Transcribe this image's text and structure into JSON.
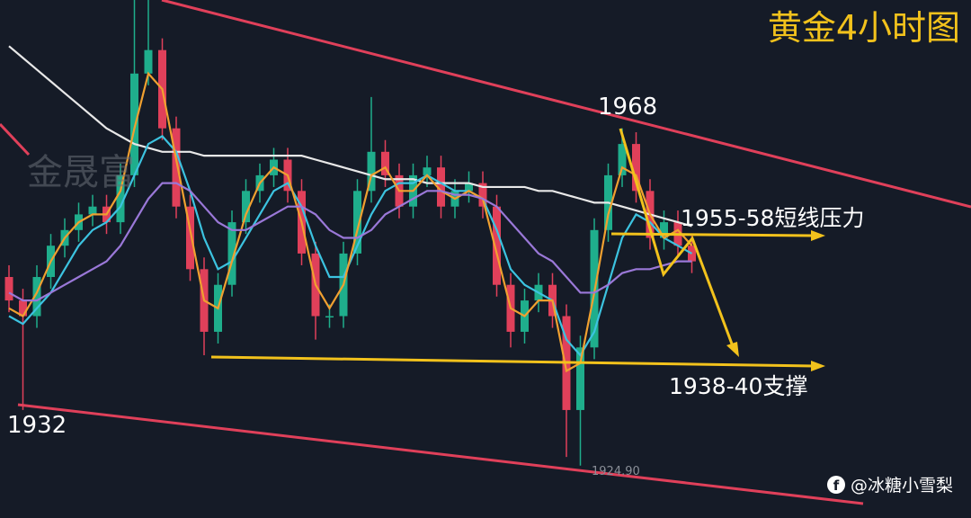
{
  "chart_data": {
    "type": "candlestick",
    "title": "黄金4小时图",
    "watermark": "金晟富",
    "annotations": [
      "1968",
      "1955-58短线压力",
      "1938-40支撑",
      "1932",
      "1924.90"
    ],
    "author": "@冰糖小雪梨",
    "ylim": [
      1918.2,
      1984.4
    ],
    "up_color": "#1fae8c",
    "down_color": "#e0405a",
    "open": [
      1949,
      1946,
      1944,
      1949,
      1953,
      1955,
      1957,
      1958,
      1956,
      1962,
      1975,
      1978,
      1968,
      1958,
      1950,
      1942,
      1948,
      1956,
      1960,
      1962,
      1964,
      1960,
      1952,
      1944,
      1944,
      1952,
      1960,
      1965,
      1962,
      1958,
      1962,
      1963,
      1958,
      1960,
      1961,
      1958,
      1948,
      1942,
      1946,
      1948,
      1944,
      1932,
      1940,
      1955,
      1962,
      1966,
      1960,
      1954,
      1956,
      1953
    ],
    "high": [
      1950.5,
      1947.5,
      1950.5,
      1954.5,
      1956.5,
      1958.5,
      1959.5,
      1959.5,
      1963.5,
      1986,
      1986,
      1979.5,
      1969.5,
      1959.5,
      1951.5,
      1949.5,
      1957.5,
      1961.5,
      1963.5,
      1965.5,
      1965.5,
      1961.5,
      1953.5,
      1945.5,
      1953.5,
      1961.5,
      1972,
      1966.5,
      1963.5,
      1963.5,
      1964.5,
      1964.5,
      1961.5,
      1962.5,
      1962.5,
      1959.5,
      1949.5,
      1947.5,
      1949.5,
      1949.5,
      1945.5,
      1941.5,
      1956.5,
      1963.5,
      1968,
      1967.5,
      1961.5,
      1957.5,
      1957.5,
      1954.5
    ],
    "low": [
      1944.5,
      1932,
      1942.5,
      1947.5,
      1951.5,
      1953.5,
      1955.5,
      1954.5,
      1954.5,
      1960.5,
      1973.5,
      1966.5,
      1956.5,
      1948.5,
      1939,
      1940.5,
      1946.5,
      1954.5,
      1958.5,
      1960.5,
      1958.5,
      1950.5,
      1941,
      1942.5,
      1942.5,
      1950.5,
      1958.5,
      1960.5,
      1956.5,
      1956.5,
      1960.5,
      1956.5,
      1956.5,
      1958.5,
      1956.5,
      1946.5,
      1940,
      1940.5,
      1944.5,
      1942.5,
      1926,
      1924.9,
      1938.5,
      1953.5,
      1960.5,
      1958.5,
      1952.5,
      1952.5,
      1951.5,
      1949.5
    ],
    "close": [
      1946,
      1944,
      1949,
      1953,
      1955,
      1957,
      1958,
      1956,
      1962,
      1975,
      1978,
      1968,
      1958,
      1950,
      1942,
      1948,
      1956,
      1960,
      1962,
      1964,
      1960,
      1952,
      1944,
      1944,
      1952,
      1960,
      1965,
      1962,
      1958,
      1962,
      1963,
      1958,
      1960,
      1961,
      1958,
      1948,
      1942,
      1946,
      1948,
      1944,
      1932,
      1940,
      1955,
      1962,
      1966,
      1960,
      1954,
      1956,
      1953,
      1951
    ],
    "series": [
      {
        "color": "#e8e8e8",
        "values": [
          1978.5,
          1977,
          1975.5,
          1974,
          1972.5,
          1971,
          1969.5,
          1968,
          1967,
          1966,
          1965.5,
          1965,
          1965,
          1965,
          1964.5,
          1964.5,
          1964.5,
          1964.5,
          1964.5,
          1964.5,
          1964.5,
          1964.5,
          1964,
          1963.5,
          1963,
          1962.5,
          1962,
          1961.5,
          1961.5,
          1961.5,
          1961,
          1961,
          1961,
          1961,
          1960.5,
          1960.5,
          1960.5,
          1960.5,
          1960,
          1960,
          1959.5,
          1959,
          1958.5,
          1958.5,
          1958,
          1957.5,
          1957,
          1956.5,
          1956,
          1955.5
        ]
      },
      {
        "color": "#3cc3e0",
        "values": [
          1944,
          1943,
          1945,
          1947,
          1950,
          1953,
          1955,
          1956,
          1958,
          1962,
          1966,
          1967,
          1965,
          1960,
          1954,
          1950,
          1951,
          1954,
          1957,
          1960,
          1961,
          1958,
          1953,
          1949,
          1949,
          1953,
          1957,
          1960,
          1961,
          1961,
          1962,
          1961,
          1960,
          1960,
          1959,
          1955,
          1950,
          1948,
          1947,
          1946,
          1941,
          1939,
          1942,
          1948,
          1954,
          1957,
          1956,
          1954,
          1953,
          1952
        ]
      },
      {
        "color": "#f0a030",
        "values": [
          1945,
          1944,
          1947,
          1951,
          1954,
          1956,
          1957,
          1957,
          1960,
          1968,
          1975,
          1973,
          1964,
          1955,
          1946,
          1945,
          1951,
          1957,
          1961,
          1963,
          1962,
          1956,
          1948,
          1945,
          1948,
          1955,
          1962,
          1963,
          1960,
          1960,
          1962,
          1960,
          1959,
          1960,
          1959,
          1952,
          1945,
          1944,
          1946,
          1946,
          1937,
          1938,
          1947,
          1957,
          1963,
          1962,
          1957,
          1954,
          1955,
          1953
        ]
      },
      {
        "color": "#9a78d8",
        "values": [
          1947,
          1946,
          1946,
          1947,
          1948,
          1949,
          1950,
          1951,
          1953,
          1956,
          1959,
          1961,
          1961,
          1960,
          1958,
          1956,
          1955,
          1955,
          1956,
          1957,
          1958,
          1958,
          1957,
          1955,
          1954,
          1954,
          1955,
          1957,
          1958,
          1959,
          1960,
          1960,
          1959.5,
          1959.5,
          1959,
          1958,
          1956,
          1954,
          1952,
          1951,
          1949,
          1947,
          1947,
          1948,
          1949.5,
          1950,
          1950,
          1950.5,
          1951,
          1951
        ]
      }
    ]
  }
}
